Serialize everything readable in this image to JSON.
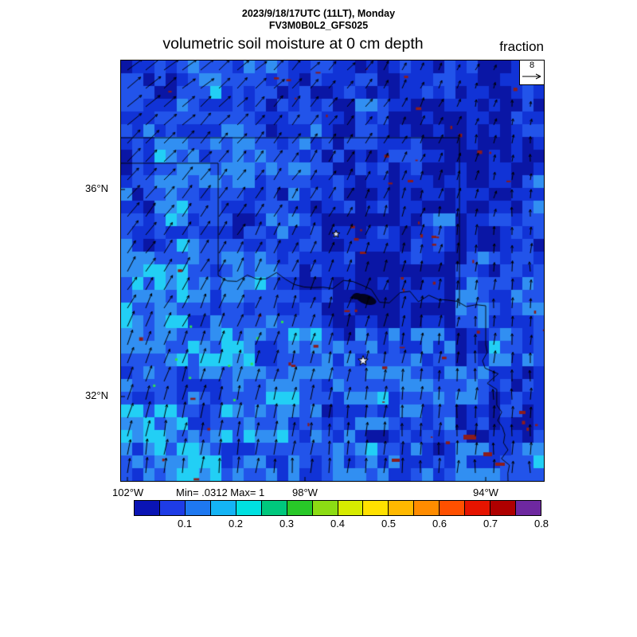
{
  "header": {
    "datetime_line": "2023/9/18/17UTC (11LT), Monday",
    "model_line": "FV3M0B0L2_GFS025",
    "title": "volumetric soil moisture at 0 cm depth",
    "units_label": "fraction"
  },
  "map": {
    "stats_label": "Min= .0312 Max= 1",
    "reference_vector_value": "8",
    "lat_ticks": [
      {
        "label": "36°N"
      },
      {
        "label": "32°N"
      }
    ],
    "lon_ticks": [
      {
        "label": "102°W"
      },
      {
        "label": "98°W"
      },
      {
        "label": "94°W"
      }
    ],
    "fill_palette": [
      "#0a16a5",
      "#1133d6",
      "#2254ea",
      "#318ff2",
      "#22cff5"
    ],
    "lake_color": "#8c1c1c",
    "deep_lake_color": "#02021e",
    "border_color": "#000000",
    "arrow_color": "#000000",
    "green_speck_color": "#30e050"
  },
  "chart_data": {
    "type": "heatmap",
    "title": "volumetric soil moisture at 0 cm depth",
    "units_label": "fraction",
    "run_label": "2023/9/18/17UTC (11LT), Monday",
    "model_label": "FV3M0B0L2_GFS025",
    "overlay": "wind vectors",
    "stats": {
      "min": 0.0312,
      "max": 1
    },
    "y_ticks": [
      "36°N",
      "32°N"
    ],
    "x_ticks": [
      "102°W",
      "98°W",
      "94°W"
    ],
    "wind_reference": 8,
    "legend_position": "bottom",
    "colorbar": {
      "tick_labels": [
        "0.1",
        "0.2",
        "0.3",
        "0.4",
        "0.5",
        "0.6",
        "0.7",
        "0.8"
      ],
      "colors": [
        "#0a14b4",
        "#1e3ce6",
        "#1e78f0",
        "#14b4f5",
        "#00e1e1",
        "#00c87d",
        "#28c828",
        "#8cdc14",
        "#d7eb00",
        "#ffe100",
        "#ffb900",
        "#ff8c00",
        "#ff5000",
        "#e61400",
        "#af0000",
        "#6e28a0"
      ]
    }
  }
}
